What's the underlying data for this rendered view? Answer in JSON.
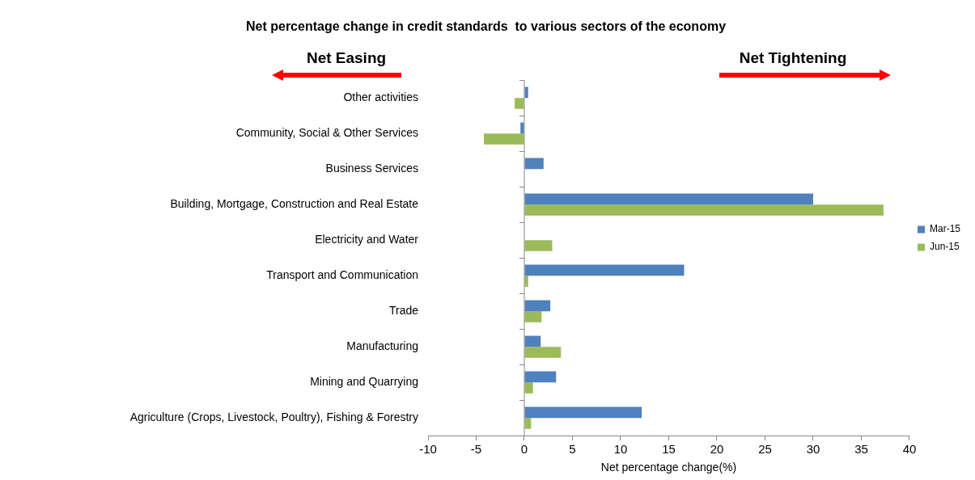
{
  "chart_data": {
    "type": "bar",
    "orientation": "horizontal",
    "title": "Net percentage change in credit standards  to various sectors of the economy",
    "xlabel": "Net percentage change(%)",
    "categories": [
      "Other activities",
      "Community, Social & Other Services",
      "Business Services",
      "Building, Mortgage, Construction and Real Estate",
      "Electricity and Water",
      "Transport and Communication",
      "Trade",
      "Manufacturing",
      "Mining and Quarrying",
      "Agriculture (Crops, Livestock, Poultry), Fishing & Forestry"
    ],
    "series": [
      {
        "name": "Mar-15",
        "color": "#4f81bd",
        "values": [
          0.4,
          -0.4,
          2.0,
          30.0,
          null,
          16.6,
          2.7,
          1.7,
          3.3,
          12.2
        ]
      },
      {
        "name": "Jun-15",
        "color": "#9bbb59",
        "values": [
          -1.0,
          -4.2,
          null,
          37.3,
          2.9,
          0.4,
          1.8,
          3.8,
          0.9,
          0.7
        ]
      }
    ],
    "ref_lines": [
      {
        "axis": "x",
        "value": 0,
        "color": "#888888"
      }
    ],
    "xlim": [
      -10,
      40
    ],
    "xticks": [
      -10,
      -5,
      0,
      5,
      10,
      15,
      20,
      25,
      30,
      35,
      40
    ],
    "grid": false,
    "legend": "right",
    "annotations": [
      "Net Easing",
      "Net Tightening"
    ]
  }
}
